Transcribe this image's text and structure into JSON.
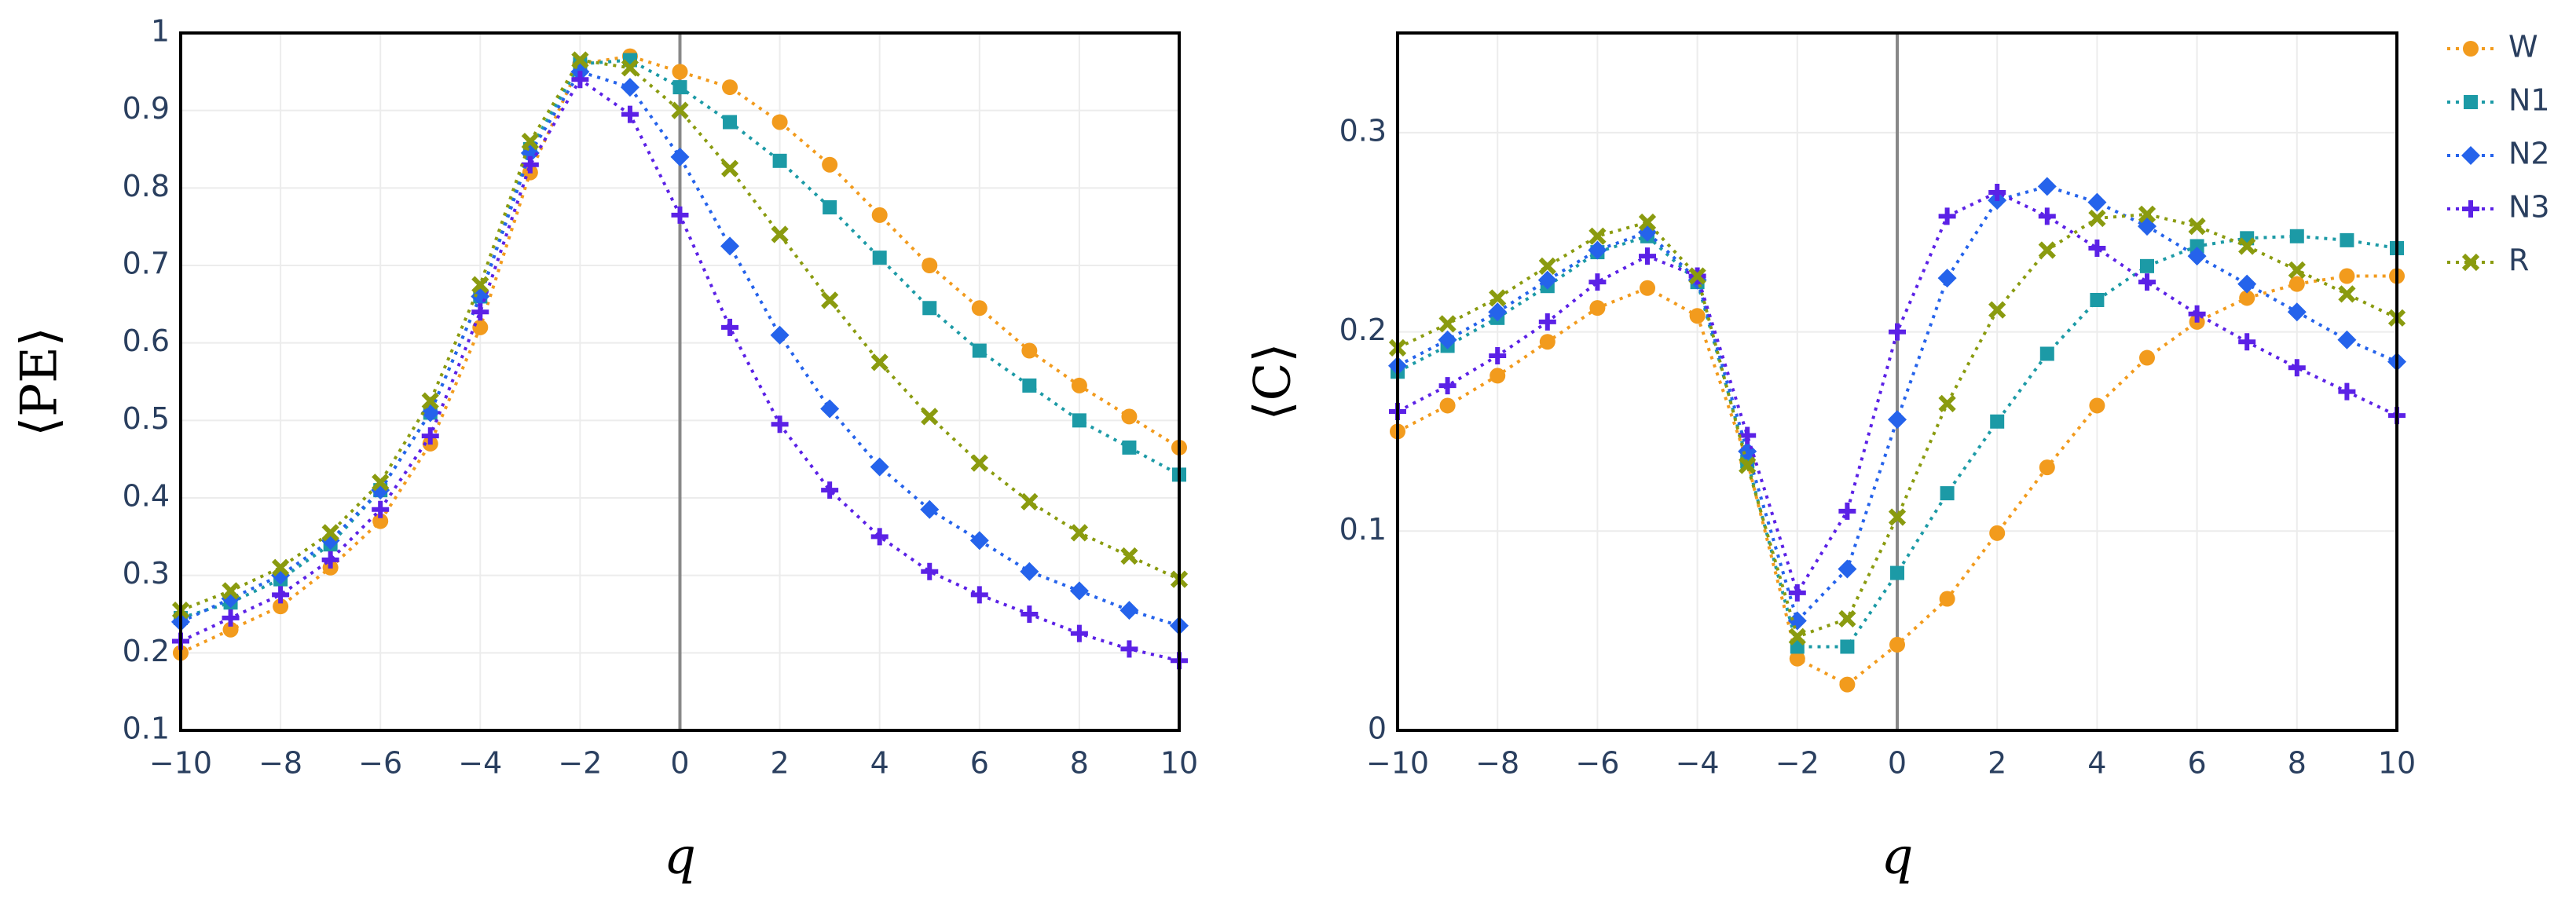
{
  "chart_data": [
    {
      "type": "line",
      "xlabel": "q",
      "ylabel": "⟨PE⟩",
      "x": [
        -10,
        -9,
        -8,
        -7,
        -6,
        -5,
        -4,
        -3,
        -2,
        -1,
        0,
        1,
        2,
        3,
        4,
        5,
        6,
        7,
        8,
        9,
        10
      ],
      "xlim": [
        -10,
        10
      ],
      "xticks": [
        {
          "value": -10,
          "label": "−10"
        },
        {
          "value": -8,
          "label": "−8"
        },
        {
          "value": -6,
          "label": "−6"
        },
        {
          "value": -4,
          "label": "−4"
        },
        {
          "value": -2,
          "label": "−2"
        },
        0,
        2,
        4,
        6,
        8,
        10
      ],
      "ylim": [
        0.1,
        1
      ],
      "yticks": [
        0.1,
        0.2,
        0.3,
        0.4,
        0.5,
        0.6,
        0.7,
        0.8,
        0.9,
        1
      ],
      "grid": true,
      "zeroline": true,
      "legend": "outside-right",
      "series": [
        {
          "name": "W",
          "color": "#f29b1d",
          "marker": "circle",
          "values": [
            0.2,
            0.23,
            0.26,
            0.31,
            0.37,
            0.47,
            0.62,
            0.82,
            0.96,
            0.97,
            0.95,
            0.93,
            0.885,
            0.83,
            0.765,
            0.7,
            0.645,
            0.59,
            0.545,
            0.505,
            0.465
          ]
        },
        {
          "name": "N1",
          "color": "#1c9aa6",
          "marker": "square",
          "values": [
            0.245,
            0.265,
            0.295,
            0.34,
            0.41,
            0.51,
            0.66,
            0.85,
            0.96,
            0.965,
            0.93,
            0.885,
            0.835,
            0.775,
            0.71,
            0.645,
            0.59,
            0.545,
            0.5,
            0.465,
            0.43
          ]
        },
        {
          "name": "N2",
          "color": "#2563eb",
          "marker": "diamond",
          "values": [
            0.24,
            0.27,
            0.3,
            0.345,
            0.41,
            0.51,
            0.66,
            0.845,
            0.95,
            0.93,
            0.84,
            0.725,
            0.61,
            0.515,
            0.44,
            0.385,
            0.345,
            0.305,
            0.28,
            0.255,
            0.235
          ]
        },
        {
          "name": "N3",
          "color": "#5b21e6",
          "marker": "cross",
          "values": [
            0.215,
            0.245,
            0.275,
            0.32,
            0.385,
            0.48,
            0.64,
            0.83,
            0.94,
            0.895,
            0.765,
            0.62,
            0.495,
            0.41,
            0.35,
            0.305,
            0.275,
            0.25,
            0.225,
            0.205,
            0.19
          ]
        },
        {
          "name": "R",
          "color": "#8a9b0f",
          "marker": "x",
          "values": [
            0.255,
            0.28,
            0.31,
            0.355,
            0.42,
            0.525,
            0.675,
            0.86,
            0.965,
            0.955,
            0.9,
            0.825,
            0.74,
            0.655,
            0.575,
            0.505,
            0.445,
            0.395,
            0.355,
            0.325,
            0.295
          ]
        }
      ]
    },
    {
      "type": "line",
      "xlabel": "q",
      "ylabel": "⟨C⟩",
      "x": [
        -10,
        -9,
        -8,
        -7,
        -6,
        -5,
        -4,
        -3,
        -2,
        -1,
        0,
        1,
        2,
        3,
        4,
        5,
        6,
        7,
        8,
        9,
        10
      ],
      "xlim": [
        -10,
        10
      ],
      "xticks": [
        {
          "value": -10,
          "label": "−10"
        },
        {
          "value": -8,
          "label": "−8"
        },
        {
          "value": -6,
          "label": "−6"
        },
        {
          "value": -4,
          "label": "−4"
        },
        {
          "value": -2,
          "label": "−2"
        },
        0,
        2,
        4,
        6,
        8,
        10
      ],
      "ylim": [
        0,
        0.35
      ],
      "yticks": [
        0,
        0.1,
        0.2,
        0.3
      ],
      "grid": true,
      "zeroline": true,
      "series": [
        {
          "values": [
            0.15,
            0.163,
            0.178,
            0.195,
            0.212,
            0.222,
            0.208,
            0.135,
            0.036,
            0.023,
            0.043,
            0.066,
            0.099,
            0.132,
            0.163,
            0.187,
            0.205,
            0.217,
            0.224,
            0.228,
            0.228
          ]
        },
        {
          "values": [
            0.18,
            0.193,
            0.207,
            0.223,
            0.24,
            0.248,
            0.225,
            0.135,
            0.042,
            0.042,
            0.079,
            0.119,
            0.155,
            0.189,
            0.216,
            0.233,
            0.243,
            0.247,
            0.248,
            0.246,
            0.242
          ]
        },
        {
          "values": [
            0.183,
            0.196,
            0.21,
            0.226,
            0.241,
            0.25,
            0.226,
            0.14,
            0.055,
            0.081,
            0.156,
            0.227,
            0.266,
            0.273,
            0.265,
            0.253,
            0.238,
            0.224,
            0.21,
            0.196,
            0.185
          ]
        },
        {
          "values": [
            0.16,
            0.173,
            0.188,
            0.205,
            0.225,
            0.238,
            0.228,
            0.148,
            0.069,
            0.11,
            0.2,
            0.258,
            0.27,
            0.258,
            0.242,
            0.225,
            0.209,
            0.195,
            0.182,
            0.17,
            0.158
          ]
        },
        {
          "values": [
            0.192,
            0.204,
            0.217,
            0.233,
            0.248,
            0.255,
            0.228,
            0.133,
            0.047,
            0.056,
            0.107,
            0.164,
            0.211,
            0.241,
            0.257,
            0.259,
            0.253,
            0.243,
            0.231,
            0.219,
            0.207
          ]
        }
      ]
    }
  ]
}
